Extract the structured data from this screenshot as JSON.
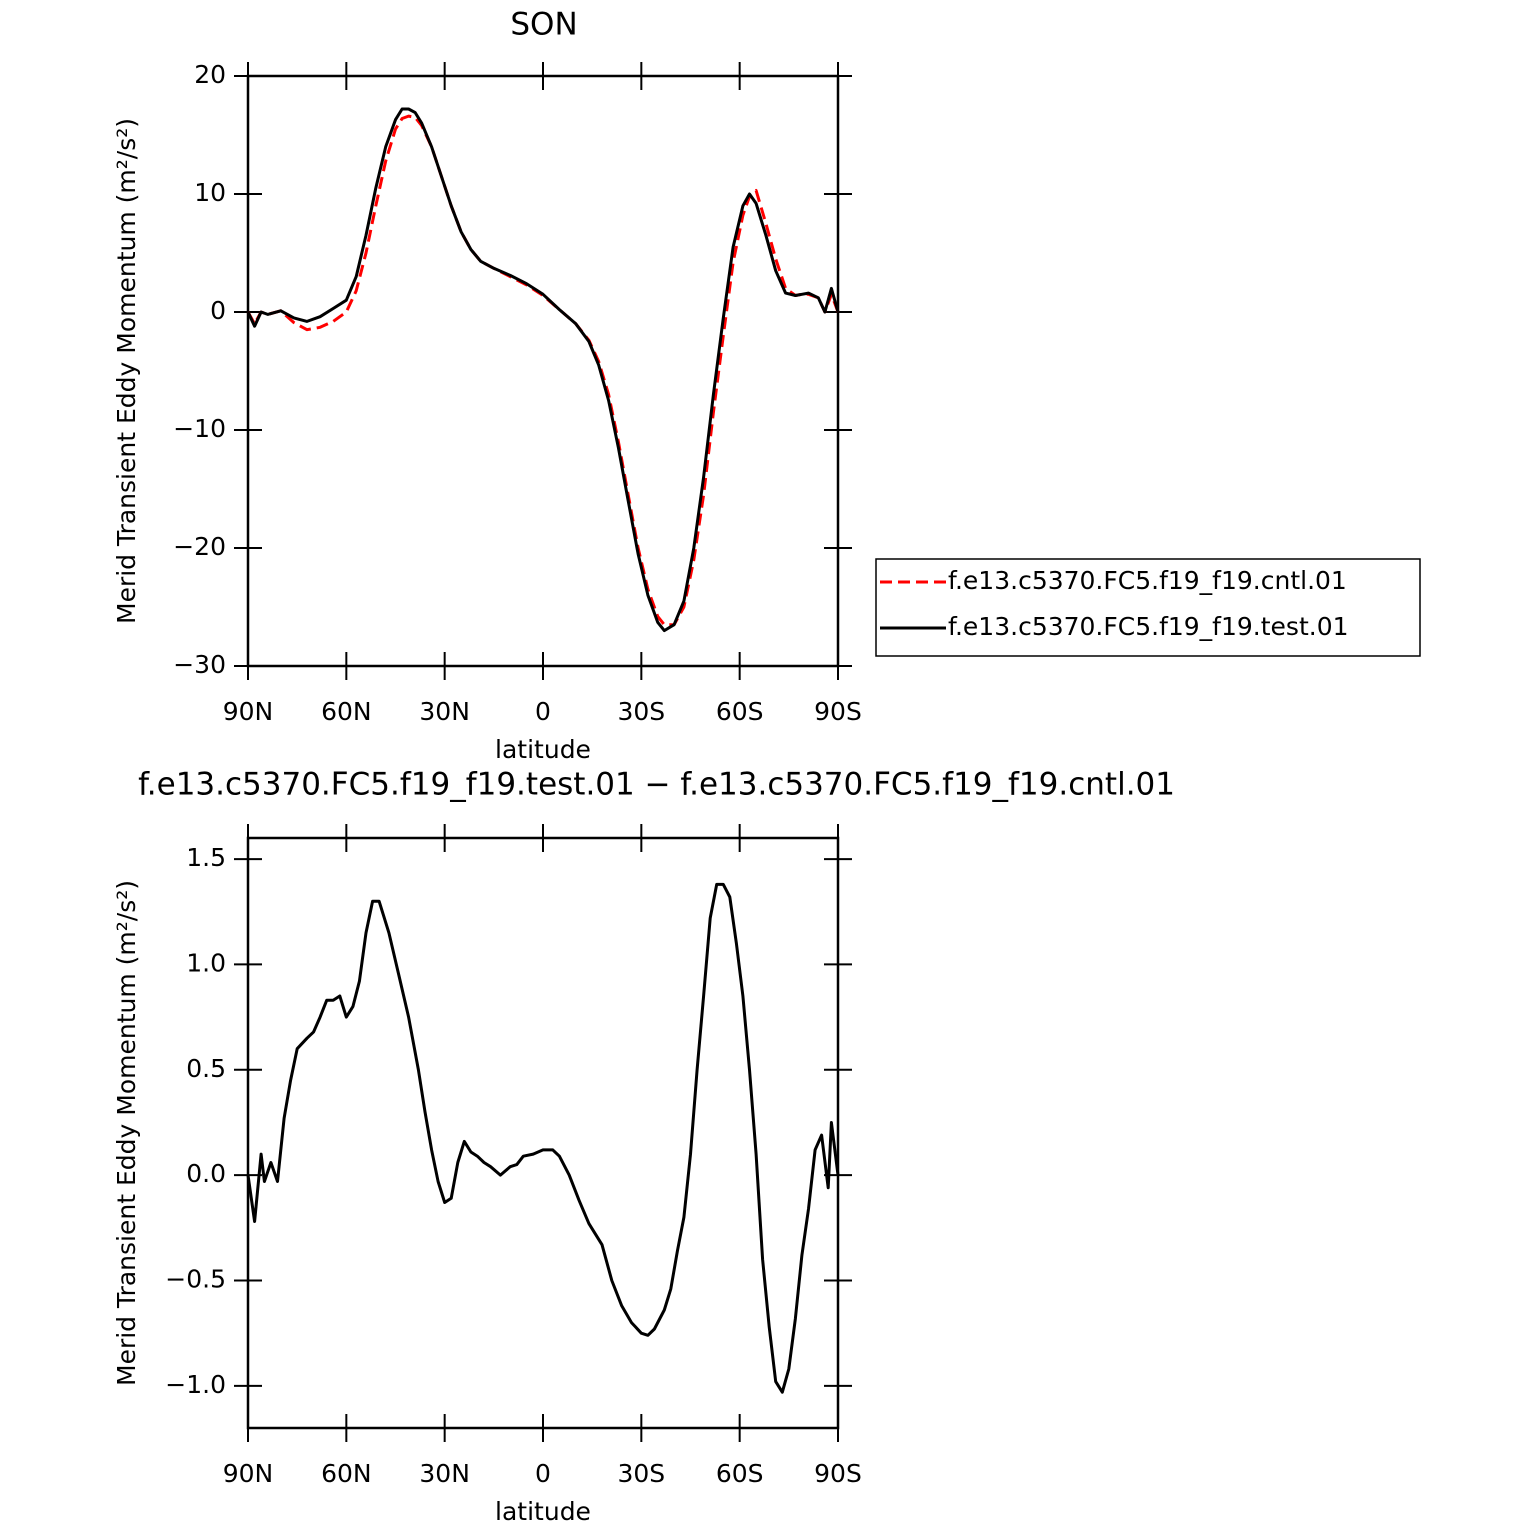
{
  "chart_data": [
    {
      "type": "line",
      "title": "SON",
      "xlabel": "latitude",
      "ylabel": "Merid Transient Eddy Momentum (m²/s²)",
      "x": [
        90,
        88,
        86,
        84,
        80,
        76,
        72,
        68,
        64,
        60,
        57,
        54,
        51,
        48,
        45,
        43,
        41,
        39,
        37,
        34,
        31,
        28,
        25,
        22,
        19,
        15,
        10,
        5,
        0,
        -5,
        -10,
        -14,
        -17,
        -20,
        -23,
        -26,
        -29,
        -32,
        -35,
        -37,
        -40,
        -43,
        -46,
        -49,
        -52,
        -55,
        -58,
        -61,
        -63,
        -65,
        -68,
        -71,
        -74,
        -77,
        -79,
        -81,
        -84,
        -86,
        -88,
        -90
      ],
      "series": [
        {
          "name": "f.e13.c5370.FC5.f19_f19.cntl.01",
          "color": "#ff0000",
          "dashed": true,
          "values": [
            0,
            -1,
            0,
            -0.2,
            0.1,
            -0.9,
            -1.5,
            -1.3,
            -0.8,
            0,
            1.8,
            5,
            9,
            12.8,
            15.5,
            16.4,
            16.6,
            16.5,
            15.8,
            14,
            11.5,
            9,
            6.8,
            5.3,
            4.3,
            3.7,
            3.0,
            2.3,
            1.4,
            0.2,
            -1,
            -2.4,
            -4.2,
            -7,
            -11,
            -15.5,
            -20,
            -23.5,
            -25.8,
            -26.5,
            -26.5,
            -25,
            -21,
            -15.5,
            -8.5,
            -2,
            4.2,
            8.2,
            9.8,
            10.3,
            7.5,
            4.5,
            2,
            1.4,
            1.5,
            1.5,
            1.2,
            0,
            1.5,
            0
          ]
        },
        {
          "name": "f.e13.c5370.FC5.f19_f19.test.01",
          "color": "#000000",
          "dashed": false,
          "values": [
            0,
            -1.2,
            0,
            -0.2,
            0.1,
            -0.5,
            -0.8,
            -0.4,
            0.3,
            1.0,
            3,
            6.5,
            10.5,
            14,
            16.3,
            17.2,
            17.2,
            16.9,
            16,
            14,
            11.5,
            9,
            6.8,
            5.3,
            4.3,
            3.7,
            3.1,
            2.4,
            1.5,
            0.2,
            -1,
            -2.5,
            -4.5,
            -7.5,
            -11.5,
            -16,
            -20.5,
            -24,
            -26.3,
            -27,
            -26.5,
            -24.5,
            -20,
            -14,
            -7,
            -0.5,
            5.5,
            9,
            10,
            9.2,
            6.5,
            3.5,
            1.6,
            1.4,
            1.5,
            1.6,
            1.2,
            0,
            2,
            0
          ]
        }
      ],
      "xlim": [
        90,
        -90
      ],
      "xticks": [
        {
          "value": 90,
          "label": "90N"
        },
        {
          "value": 60,
          "label": "60N"
        },
        {
          "value": 30,
          "label": "30N"
        },
        0,
        {
          "value": -30,
          "label": "30S"
        },
        {
          "value": -60,
          "label": "60S"
        },
        {
          "value": -90,
          "label": "90S"
        }
      ],
      "ylim": [
        -30,
        20
      ],
      "yticks": [
        {
          "value": -30,
          "label": "−30"
        },
        {
          "value": -20,
          "label": "−20"
        },
        {
          "value": -10,
          "label": "−10"
        },
        0,
        10,
        20
      ],
      "legend": "outside-right"
    },
    {
      "type": "line",
      "title": "f.e13.c5370.FC5.f19_f19.test.01 − f.e13.c5370.FC5.f19_f19.cntl.01",
      "xlabel": "latitude",
      "ylabel": "Merid Transient Eddy Momentum (m²/s²)",
      "x": [
        90,
        88,
        86,
        85,
        83,
        81,
        79,
        77,
        75,
        72,
        70,
        68,
        66,
        64,
        62,
        60,
        58,
        56,
        54,
        52,
        50,
        47,
        44,
        41,
        38,
        36,
        34,
        32,
        30,
        28,
        26,
        24,
        22,
        20,
        18,
        16,
        13,
        10,
        8,
        6,
        3,
        0,
        -3,
        -5,
        -8,
        -11,
        -14,
        -18,
        -21,
        -24,
        -27,
        -30,
        -32,
        -34,
        -37,
        -39,
        -41,
        -43,
        -45,
        -47,
        -49,
        -51,
        -53,
        -55,
        -57,
        -59,
        -61,
        -63,
        -65,
        -67,
        -69,
        -71,
        -73,
        -75,
        -77,
        -79,
        -81,
        -83,
        -85,
        -87,
        -88,
        -90
      ],
      "series": [
        {
          "color": "#000000",
          "dashed": false,
          "values": [
            0,
            -0.22,
            0.1,
            -0.03,
            0.06,
            -0.03,
            0.27,
            0.45,
            0.6,
            0.65,
            0.68,
            0.75,
            0.83,
            0.83,
            0.85,
            0.75,
            0.8,
            0.92,
            1.15,
            1.3,
            1.3,
            1.15,
            0.95,
            0.75,
            0.5,
            0.3,
            0.12,
            -0.03,
            -0.13,
            -0.11,
            0.06,
            0.16,
            0.11,
            0.09,
            0.06,
            0.04,
            0.0,
            0.04,
            0.05,
            0.09,
            0.1,
            0.12,
            0.12,
            0.09,
            0.0,
            -0.12,
            -0.23,
            -0.33,
            -0.5,
            -0.62,
            -0.7,
            -0.75,
            -0.76,
            -0.73,
            -0.64,
            -0.54,
            -0.36,
            -0.2,
            0.1,
            0.5,
            0.85,
            1.22,
            1.38,
            1.38,
            1.32,
            1.1,
            0.85,
            0.5,
            0.1,
            -0.4,
            -0.72,
            -0.98,
            -1.03,
            -0.92,
            -0.68,
            -0.38,
            -0.16,
            0.12,
            0.19,
            -0.06,
            0.25,
            0
          ]
        }
      ],
      "xlim": [
        90,
        -90
      ],
      "xticks": [
        {
          "value": 90,
          "label": "90N"
        },
        {
          "value": 60,
          "label": "60N"
        },
        {
          "value": 30,
          "label": "30N"
        },
        0,
        {
          "value": -30,
          "label": "30S"
        },
        {
          "value": -60,
          "label": "60S"
        },
        {
          "value": -90,
          "label": "90S"
        }
      ],
      "ylim": [
        -1.2,
        1.6
      ],
      "yticks": [
        {
          "value": -1.0,
          "label": "−1.0"
        },
        {
          "value": -0.5,
          "label": "−0.5"
        },
        {
          "value": 0,
          "label": "0.0"
        },
        0.5,
        {
          "value": 1.0,
          "label": "1.0"
        },
        1.5
      ]
    }
  ]
}
